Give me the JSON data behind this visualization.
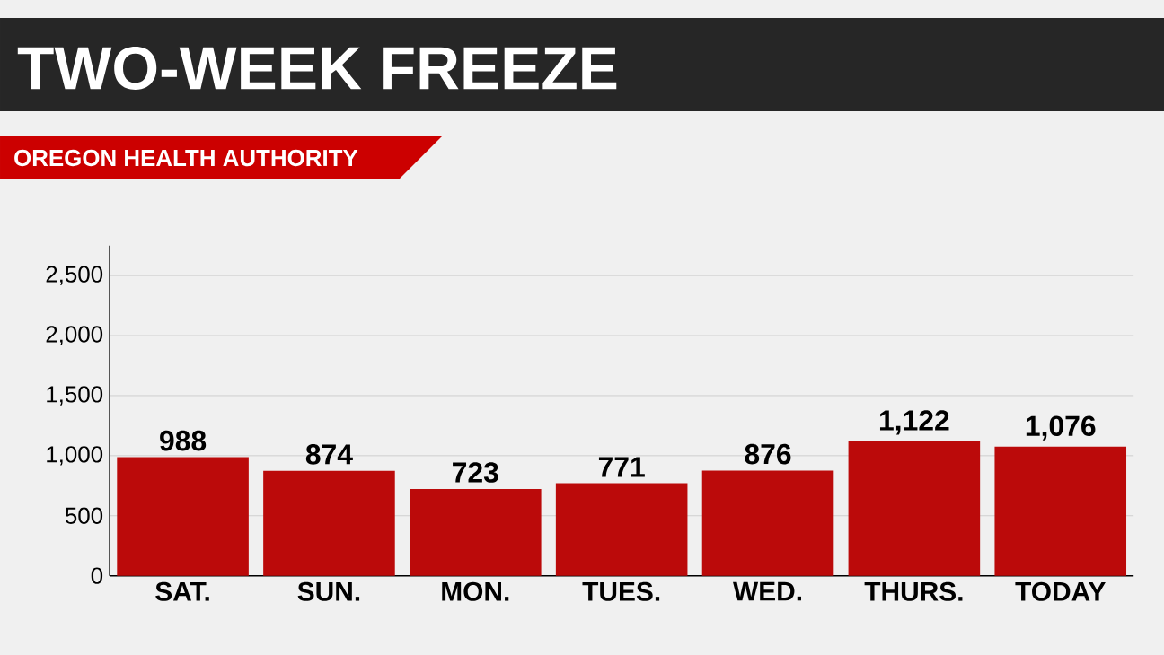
{
  "chart_data": {
    "type": "bar",
    "title": "TWO-WEEK FREEZE",
    "subtitle": "OREGON HEALTH AUTHORITY",
    "categories": [
      "SAT.",
      "SUN.",
      "MON.",
      "TUES.",
      "WED.",
      "THURS.",
      "TODAY"
    ],
    "values": [
      988,
      874,
      723,
      771,
      876,
      1122,
      1076
    ],
    "value_labels": [
      "988",
      "874",
      "723",
      "771",
      "876",
      "1,122",
      "1,076"
    ],
    "color": "#bb0a0a",
    "ylim": [
      0,
      2750
    ],
    "yticks": [
      0,
      {
        "value": 500,
        "label": "500"
      },
      {
        "value": 1000,
        "label": "1,000"
      },
      {
        "value": 1500,
        "label": "1,500"
      },
      {
        "value": 2000,
        "label": "2,000"
      },
      {
        "value": 2500,
        "label": "2,500"
      }
    ],
    "grid": "y"
  }
}
